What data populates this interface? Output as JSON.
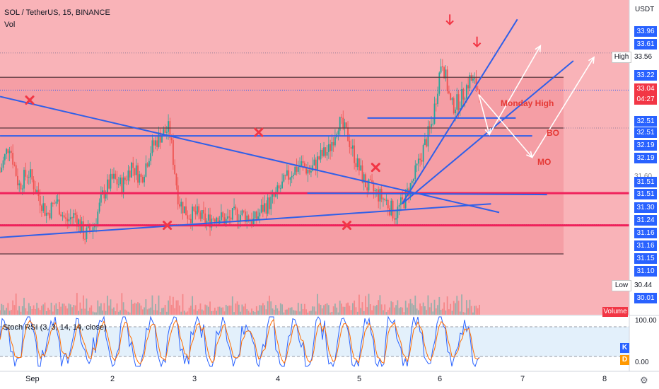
{
  "header": {
    "symbol_line": "SOL / TetherUS, 15, BINANCE",
    "volume_label": "Vol",
    "oscillator_label": "Stoch RSI (3, 3, 14, 14, close)",
    "volume_badge": "Volume"
  },
  "price_axis": {
    "unit": "USDT",
    "tags": [
      "33.96",
      "33.61",
      "33.22",
      "33.04",
      "04:27",
      "32.51",
      "32.51",
      "32.19",
      "32.19",
      "31.51",
      "31.51",
      "31.30",
      "31.24",
      "31.16",
      "31.16",
      "31.15",
      "31.10",
      "30.01"
    ],
    "high_label": "High",
    "high_value": "33.56",
    "low_label": "Low",
    "low_value": "30.44",
    "hidden_level": "31.60"
  },
  "oscillator_axis": {
    "ticks": [
      "100.00",
      "0.00"
    ],
    "k": "K",
    "d": "D"
  },
  "annotations": {
    "monday_high": "Monday High",
    "bo": "BO",
    "mo": "MO"
  },
  "colors": {
    "zone_upper": "#f9b3b8",
    "zone_lower": "#f28c96",
    "trendline": "#2f5fe8",
    "level_line": "#f0215b",
    "cross": "#f23645",
    "arrow": "#ffffff",
    "tag_bg": "#2962ff",
    "candle_up": "#26a69a",
    "candle_down": "#ef5350",
    "k_line": "#2962ff",
    "d_line": "#ff6d00",
    "osc_bg": "#e3f0fb"
  },
  "chart_data": {
    "type": "candlestick",
    "x_ticks": [
      "Sep",
      "2",
      "3",
      "4",
      "5",
      "6",
      "7",
      "8"
    ],
    "ylim": [
      29.9,
      34.3
    ],
    "key_levels": [
      33.22,
      32.51,
      31.6,
      31.15
    ],
    "recent_high": 33.56,
    "recent_low": 30.44,
    "close_price": 33.04,
    "countdown": "04:27",
    "price_path": [
      31.9,
      32.3,
      31.7,
      31.9,
      31.6,
      31.3,
      31.5,
      31.2,
      31.3,
      31.0,
      31.15,
      31.6,
      31.8,
      31.7,
      32.0,
      31.8,
      32.2,
      32.4,
      32.5,
      31.5,
      31.3,
      31.3,
      31.2,
      31.3,
      31.2,
      31.3,
      31.3,
      31.2,
      31.4,
      31.5,
      31.7,
      31.9,
      32.0,
      31.9,
      32.1,
      32.2,
      32.6,
      32.4,
      32.0,
      31.7,
      31.6,
      31.5,
      31.3,
      31.5,
      31.8,
      32.2,
      32.6,
      33.5,
      32.8,
      32.9,
      33.2,
      33.04
    ],
    "oscillator_levels": [
      80,
      20
    ],
    "crosses_at": [
      [
        0.0,
        32.9
      ],
      [
        1.67,
        31.15
      ],
      [
        2.78,
        32.45
      ],
      [
        3.85,
        31.15
      ],
      [
        4.2,
        31.96
      ]
    ]
  }
}
